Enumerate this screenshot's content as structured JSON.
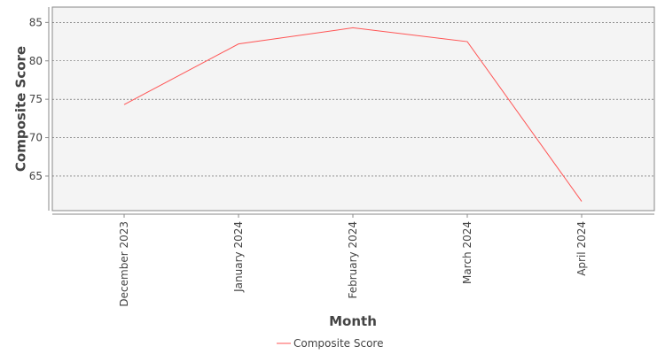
{
  "chart_data": {
    "type": "line",
    "categories": [
      "December 2023",
      "January 2024",
      "February 2024",
      "March 2024",
      "April 2024"
    ],
    "series": [
      {
        "name": "Composite Score",
        "color": "#ff5555",
        "values": [
          74.3,
          82.2,
          84.3,
          82.5,
          61.7
        ]
      }
    ],
    "x_label": "Month",
    "y_label": "Composite Score",
    "ylim": [
      60.5,
      87
    ],
    "yticks": [
      65,
      70,
      75,
      80,
      85
    ],
    "grid": true
  }
}
